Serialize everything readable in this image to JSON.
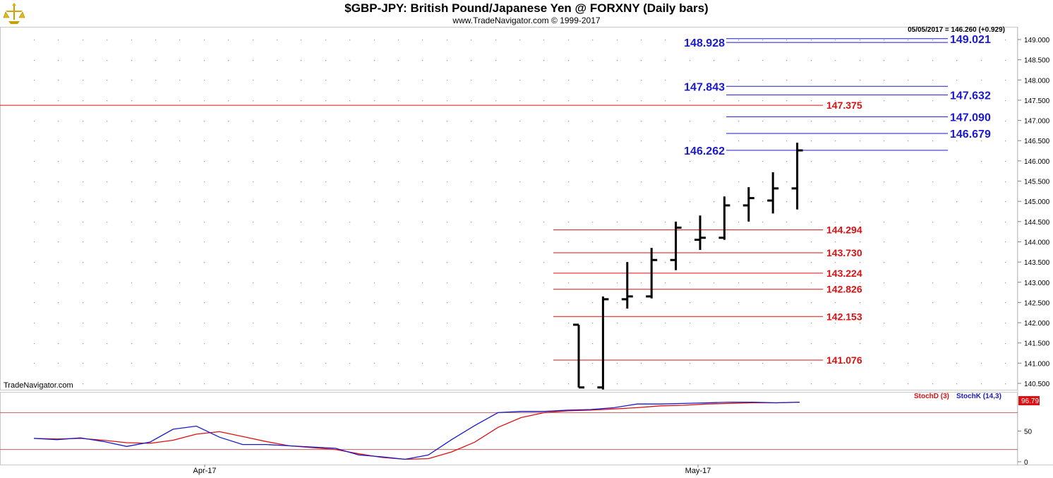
{
  "header": {
    "title": "$GBP-JPY:  British Pound/Japanese Yen @ FORXNY  (Daily bars)",
    "subtitle": "www.TradeNavigator.com © 1999-2017"
  },
  "watermark": "TradeNavigator.com",
  "colors": {
    "bars": "#000000",
    "resistance_line": "#1a1acc",
    "support_line": "#dd1111",
    "stochD": "#dd1111",
    "stochK": "#1a1acc",
    "grid_dot": "#9a9a9a",
    "frame": "#c8c8c8"
  },
  "chart_data": [
    {
      "type": "bar",
      "style": "OHLC",
      "title": "$GBP-JPY:  British Pound/Japanese Yen @ FORXNY  (Daily bars)",
      "last_value_label": "05/05/2017 = 146.260 (+0.929)",
      "ylim": [
        140.35,
        149.2
      ],
      "y_ticks": [
        "149.000",
        "148.500",
        "148.000",
        "147.500",
        "147.000",
        "146.500",
        "146.000",
        "145.500",
        "145.000",
        "144.500",
        "144.000",
        "143.500",
        "143.000",
        "142.500",
        "142.000",
        "141.500",
        "141.000",
        "140.500"
      ],
      "x_ticks": [
        "Apr-17",
        "May-17"
      ],
      "grid": true,
      "bars": [
        {
          "open": 141.95,
          "high": 141.95,
          "low": 140.4,
          "close": 140.4
        },
        {
          "open": 140.4,
          "high": 142.65,
          "low": 140.35,
          "close": 142.58
        },
        {
          "open": 142.58,
          "high": 143.5,
          "low": 142.35,
          "close": 142.65
        },
        {
          "open": 142.65,
          "high": 143.85,
          "low": 142.6,
          "close": 143.55
        },
        {
          "open": 143.55,
          "high": 144.5,
          "low": 143.3,
          "close": 144.35
        },
        {
          "open": 144.05,
          "high": 144.65,
          "low": 143.8,
          "close": 144.1
        },
        {
          "open": 144.1,
          "high": 145.12,
          "low": 144.05,
          "close": 144.9
        },
        {
          "open": 144.9,
          "high": 145.35,
          "low": 144.5,
          "close": 145.08
        },
        {
          "open": 145.02,
          "high": 145.72,
          "low": 144.7,
          "close": 145.32
        },
        {
          "open": 145.32,
          "high": 146.45,
          "low": 144.8,
          "close": 146.26
        }
      ],
      "resistance_levels": [
        {
          "value": 148.928,
          "label": "148.928",
          "label_side": "left"
        },
        {
          "value": 149.021,
          "label": "149.021",
          "label_side": "right"
        },
        {
          "value": 147.843,
          "label": "147.843",
          "label_side": "left"
        },
        {
          "value": 147.632,
          "label": "147.632",
          "label_side": "right"
        },
        {
          "value": 147.09,
          "label": "147.090",
          "label_side": "right"
        },
        {
          "value": 146.679,
          "label": "146.679",
          "label_side": "right"
        },
        {
          "value": 146.262,
          "label": "146.262",
          "label_side": "left"
        }
      ],
      "support_levels": [
        {
          "value": 147.375,
          "label": "147.375",
          "full_width": true
        },
        {
          "value": 144.294,
          "label": "144.294"
        },
        {
          "value": 143.73,
          "label": "143.730"
        },
        {
          "value": 143.224,
          "label": "143.224"
        },
        {
          "value": 142.826,
          "label": "142.826"
        },
        {
          "value": 142.153,
          "label": "142.153"
        },
        {
          "value": 141.076,
          "label": "141.076"
        }
      ]
    },
    {
      "type": "line",
      "title": "",
      "ylim": [
        0,
        100
      ],
      "y_ticks": [
        "50",
        "0"
      ],
      "reference_lines": [
        80,
        20
      ],
      "current_value_label": "96.79",
      "series": [
        {
          "name": "StochD (3)",
          "values": [
            38,
            37,
            38,
            35,
            31,
            30,
            35,
            45,
            49,
            41,
            33,
            26,
            23,
            20,
            13,
            7,
            4,
            5,
            16,
            32,
            56,
            72,
            80,
            83,
            84,
            86,
            88,
            91,
            92,
            94,
            95,
            96,
            96,
            97
          ]
        },
        {
          "name": "StochK (14,3)",
          "values": [
            38,
            36,
            39,
            33,
            25,
            32,
            53,
            58,
            40,
            28,
            28,
            26,
            24,
            22,
            11,
            8,
            4,
            11,
            36,
            59,
            80,
            82,
            82,
            84,
            85,
            88,
            94,
            94,
            95,
            96,
            97,
            97,
            96,
            97
          ]
        }
      ]
    }
  ]
}
